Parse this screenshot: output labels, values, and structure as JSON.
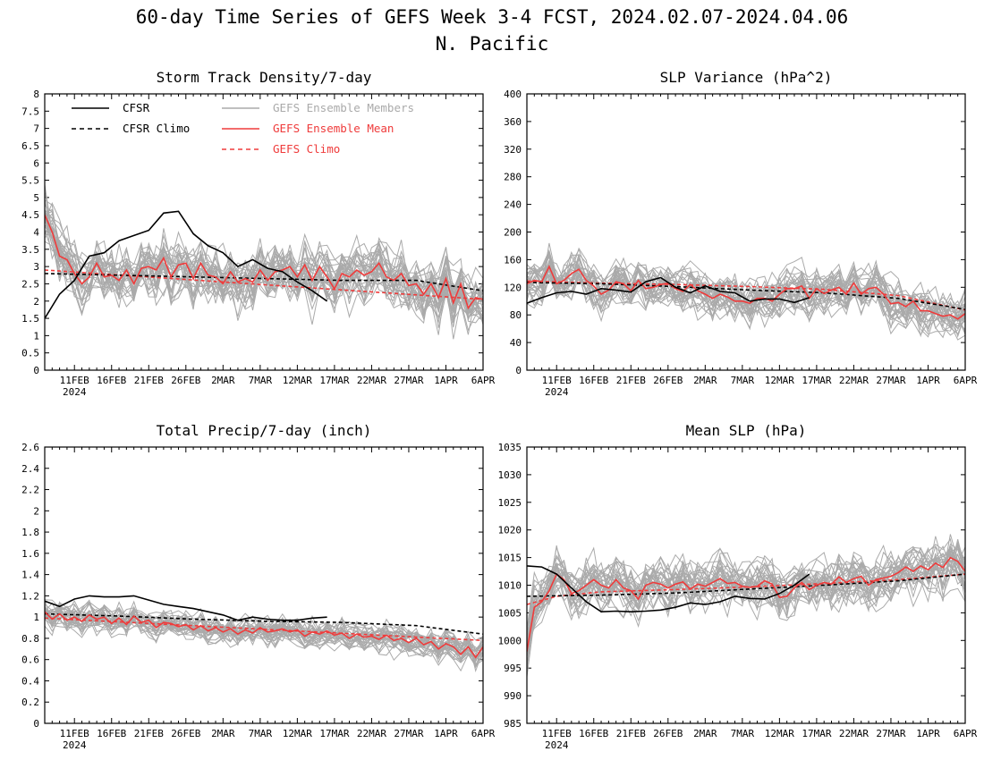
{
  "figure": {
    "title_line1": "60-day Time Series of GEFS Week 3-4 FCST, 2024.02.07-2024.04.06",
    "title_line2": "N. Pacific"
  },
  "legend": {
    "cfsr": "CFSR",
    "cfsr_climo": "CFSR Climo",
    "gefs_members": "GEFS Ensemble Members",
    "gefs_mean": "GEFS Ensemble Mean",
    "gefs_climo": "GEFS Climo"
  },
  "colors": {
    "cfsr": "#000000",
    "gefs_mean": "#ef3b3b",
    "gefs_climo": "#ef3b3b",
    "members": "#aaaaaa"
  },
  "chart_data": [
    {
      "id": "storm",
      "type": "line",
      "title": "Storm Track Density/7-day",
      "ylim": [
        0,
        8
      ],
      "yticks": [
        "0",
        "0.5",
        "1",
        "1.5",
        "2",
        "2.5",
        "3",
        "3.5",
        "4",
        "4.5",
        "5",
        "5.5",
        "6",
        "6.5",
        "7",
        "7.5",
        "8"
      ],
      "xlim": [
        "2024-02-07",
        "2024-04-06"
      ],
      "xticks": [
        "11FEB",
        "16FEB",
        "21FEB",
        "26FEB",
        "2MAR",
        "7MAR",
        "12MAR",
        "17MAR",
        "22MAR",
        "27MAR",
        "1APR",
        "6APR"
      ],
      "xyear": "2024",
      "members_spread": 0.85,
      "members_count": 30,
      "series": [
        {
          "name": "CFSR",
          "style": "solid",
          "color": "#000000",
          "x": [
            0,
            2,
            4,
            6,
            8,
            10,
            12,
            14,
            16,
            18,
            20,
            22,
            24,
            26,
            28,
            30,
            32,
            34,
            36,
            38
          ],
          "values": [
            1.5,
            2.2,
            2.6,
            3.3,
            3.4,
            3.75,
            3.9,
            4.05,
            4.55,
            4.6,
            3.95,
            3.6,
            3.4,
            3.0,
            3.2,
            2.95,
            2.85,
            2.55,
            2.3,
            2.0
          ]
        },
        {
          "name": "CFSR Climo",
          "style": "dashed",
          "color": "#000000",
          "x": [
            0,
            10,
            20,
            30,
            40,
            50,
            59
          ],
          "values": [
            2.8,
            2.75,
            2.7,
            2.65,
            2.6,
            2.6,
            2.3
          ]
        },
        {
          "name": "GEFS Ensemble Mean",
          "style": "solid",
          "color": "#ef3b3b",
          "x": [
            0,
            1,
            2,
            3,
            4,
            5,
            6,
            7,
            8,
            9,
            10,
            11,
            12,
            13,
            14,
            15,
            16,
            17,
            18,
            19,
            20,
            21,
            22,
            23,
            24,
            25,
            26,
            27,
            28,
            29,
            30,
            31,
            32,
            33,
            34,
            35,
            36,
            37,
            38,
            39,
            40,
            41,
            42,
            43,
            44,
            45,
            46,
            47,
            48,
            49,
            50,
            51,
            52,
            53,
            54,
            55,
            56,
            57,
            58,
            59
          ],
          "values": [
            4.5,
            4.0,
            3.3,
            3.2,
            2.8,
            2.5,
            2.7,
            3.1,
            2.7,
            2.75,
            2.6,
            2.9,
            2.5,
            2.95,
            3.0,
            2.9,
            3.25,
            2.7,
            3.05,
            3.1,
            2.65,
            3.1,
            2.75,
            2.7,
            2.5,
            2.85,
            2.55,
            2.65,
            2.55,
            2.9,
            2.6,
            2.85,
            2.9,
            3.0,
            2.7,
            3.05,
            2.6,
            3.0,
            2.7,
            2.35,
            2.8,
            2.7,
            2.9,
            2.75,
            2.85,
            3.1,
            2.7,
            2.6,
            2.8,
            2.45,
            2.5,
            2.2,
            2.5,
            2.1,
            2.65,
            1.95,
            2.5,
            1.8,
            2.1,
            2.05
          ]
        },
        {
          "name": "GEFS Climo",
          "style": "dashed",
          "color": "#ef3b3b",
          "x": [
            0,
            59
          ],
          "values": [
            2.9,
            2.05
          ]
        }
      ]
    },
    {
      "id": "slpvar",
      "type": "line",
      "title": "SLP Variance (hPa^2)",
      "ylim": [
        0,
        400
      ],
      "yticks": [
        "0",
        "40",
        "80",
        "120",
        "160",
        "200",
        "240",
        "280",
        "320",
        "360",
        "400"
      ],
      "xlim": [
        "2024-02-07",
        "2024-04-06"
      ],
      "xticks": [
        "11FEB",
        "16FEB",
        "21FEB",
        "26FEB",
        "2MAR",
        "7MAR",
        "12MAR",
        "17MAR",
        "22MAR",
        "27MAR",
        "1APR",
        "6APR"
      ],
      "xyear": "2024",
      "members_spread": 32,
      "members_count": 30,
      "series": [
        {
          "name": "CFSR",
          "style": "solid",
          "color": "#000000",
          "x": [
            0,
            2,
            4,
            6,
            8,
            10,
            12,
            14,
            16,
            18,
            20,
            22,
            24,
            26,
            28,
            30,
            32,
            34,
            36,
            38
          ],
          "values": [
            97,
            105,
            112,
            114,
            110,
            118,
            116,
            113,
            128,
            134,
            120,
            112,
            122,
            114,
            112,
            100,
            103,
            103,
            98,
            105
          ]
        },
        {
          "name": "CFSR Climo",
          "style": "dashed",
          "color": "#000000",
          "x": [
            0,
            10,
            20,
            30,
            40,
            50,
            59
          ],
          "values": [
            127,
            125,
            121,
            116,
            112,
            104,
            88
          ]
        },
        {
          "name": "GEFS Ensemble Mean",
          "style": "solid",
          "color": "#ef3b3b",
          "x": [
            0,
            1,
            2,
            3,
            4,
            5,
            6,
            7,
            8,
            9,
            10,
            11,
            12,
            13,
            14,
            15,
            16,
            17,
            18,
            19,
            20,
            21,
            22,
            23,
            24,
            25,
            26,
            27,
            28,
            29,
            30,
            31,
            32,
            33,
            34,
            35,
            36,
            37,
            38,
            39,
            40,
            41,
            42,
            43,
            44,
            45,
            46,
            47,
            48,
            49,
            50,
            51,
            52,
            53,
            54,
            55,
            56,
            57,
            58,
            59
          ],
          "values": [
            125,
            130,
            128,
            150,
            125,
            130,
            140,
            146,
            130,
            122,
            110,
            116,
            128,
            125,
            115,
            130,
            118,
            120,
            124,
            126,
            118,
            114,
            124,
            115,
            110,
            104,
            110,
            106,
            100,
            100,
            97,
            104,
            104,
            100,
            110,
            118,
            118,
            122,
            104,
            118,
            111,
            116,
            120,
            110,
            126,
            110,
            118,
            120,
            110,
            96,
            98,
            92,
            100,
            86,
            86,
            82,
            78,
            80,
            74,
            82
          ]
        },
        {
          "name": "GEFS Climo",
          "style": "dashed",
          "color": "#ef3b3b",
          "x": [
            0,
            10,
            20,
            30,
            40,
            50,
            59
          ],
          "values": [
            129,
            126,
            124,
            121,
            117,
            108,
            87
          ]
        }
      ]
    },
    {
      "id": "precip",
      "type": "line",
      "title": "Total Precip/7-day (inch)",
      "ylim": [
        0,
        2.6
      ],
      "yticks": [
        "0",
        "0.2",
        "0.4",
        "0.6",
        "0.8",
        "1",
        "1.2",
        "1.4",
        "1.6",
        "1.8",
        "2",
        "2.2",
        "2.4",
        "2.6"
      ],
      "xlim": [
        "2024-02-07",
        "2024-04-06"
      ],
      "xticks": [
        "11FEB",
        "16FEB",
        "21FEB",
        "26FEB",
        "2MAR",
        "7MAR",
        "12MAR",
        "17MAR",
        "22MAR",
        "27MAR",
        "1APR",
        "6APR"
      ],
      "xyear": "2024",
      "members_spread": 0.13,
      "members_count": 30,
      "series": [
        {
          "name": "CFSR",
          "style": "solid",
          "color": "#000000",
          "x": [
            0,
            2,
            4,
            6,
            8,
            10,
            12,
            14,
            16,
            18,
            20,
            22,
            24,
            26,
            28,
            30,
            32,
            34,
            36,
            38
          ],
          "values": [
            1.15,
            1.1,
            1.17,
            1.2,
            1.19,
            1.19,
            1.2,
            1.16,
            1.12,
            1.1,
            1.08,
            1.05,
            1.02,
            0.97,
            1.0,
            0.98,
            0.97,
            0.97,
            0.99,
            1.0
          ]
        },
        {
          "name": "CFSR Climo",
          "style": "dashed",
          "color": "#000000",
          "x": [
            0,
            10,
            20,
            30,
            40,
            50,
            59
          ],
          "values": [
            1.03,
            1.01,
            0.98,
            0.96,
            0.95,
            0.92,
            0.84
          ]
        },
        {
          "name": "GEFS Ensemble Mean",
          "style": "solid",
          "color": "#ef3b3b",
          "x": [
            0,
            1,
            2,
            3,
            4,
            5,
            6,
            7,
            8,
            9,
            10,
            11,
            12,
            13,
            14,
            15,
            16,
            17,
            18,
            19,
            20,
            21,
            22,
            23,
            24,
            25,
            26,
            27,
            28,
            29,
            30,
            31,
            32,
            33,
            34,
            35,
            36,
            37,
            38,
            39,
            40,
            41,
            42,
            43,
            44,
            45,
            46,
            47,
            48,
            49,
            50,
            51,
            52,
            53,
            54,
            55,
            56,
            57,
            58,
            59
          ],
          "values": [
            1.05,
            0.98,
            1.03,
            0.97,
            1.0,
            0.96,
            1.02,
            0.98,
            1.0,
            0.94,
            0.99,
            0.93,
            1.01,
            0.95,
            0.97,
            0.9,
            0.95,
            0.94,
            0.91,
            0.93,
            0.88,
            0.92,
            0.87,
            0.9,
            0.86,
            0.89,
            0.84,
            0.88,
            0.85,
            0.9,
            0.86,
            0.87,
            0.89,
            0.86,
            0.88,
            0.82,
            0.86,
            0.84,
            0.87,
            0.83,
            0.85,
            0.8,
            0.84,
            0.81,
            0.82,
            0.79,
            0.83,
            0.78,
            0.8,
            0.76,
            0.8,
            0.74,
            0.77,
            0.7,
            0.75,
            0.72,
            0.65,
            0.72,
            0.62,
            0.72
          ]
        },
        {
          "name": "GEFS Climo",
          "style": "dashed",
          "color": "#ef3b3b",
          "x": [
            0,
            59
          ],
          "values": [
            0.99,
            0.78
          ]
        }
      ]
    },
    {
      "id": "mslp",
      "type": "line",
      "title": "Mean SLP (hPa)",
      "ylim": [
        985,
        1035
      ],
      "yticks": [
        "985",
        "990",
        "995",
        "1000",
        "1005",
        "1010",
        "1015",
        "1020",
        "1025",
        "1030",
        "1035"
      ],
      "xlim": [
        "2024-02-07",
        "2024-04-06"
      ],
      "xticks": [
        "11FEB",
        "16FEB",
        "21FEB",
        "26FEB",
        "2MAR",
        "7MAR",
        "12MAR",
        "17MAR",
        "22MAR",
        "27MAR",
        "1APR",
        "6APR"
      ],
      "xyear": "2024",
      "members_spread": 4.5,
      "members_count": 30,
      "series": [
        {
          "name": "CFSR",
          "style": "solid",
          "color": "#000000",
          "x": [
            0,
            2,
            4,
            6,
            8,
            10,
            12,
            14,
            16,
            18,
            20,
            22,
            24,
            26,
            28,
            30,
            32,
            34,
            36,
            38
          ],
          "values": [
            1013.5,
            1013.3,
            1012,
            1009.5,
            1007,
            1005.2,
            1005.3,
            1005.2,
            1005.3,
            1005.5,
            1006,
            1006.8,
            1006.5,
            1007,
            1008,
            1007.6,
            1007.5,
            1008.5,
            1010,
            1012
          ]
        },
        {
          "name": "CFSR Climo",
          "style": "dashed",
          "color": "#000000",
          "x": [
            0,
            10,
            20,
            30,
            40,
            50,
            59
          ],
          "values": [
            1008,
            1008.2,
            1008.6,
            1009.3,
            1010,
            1010.8,
            1012
          ]
        },
        {
          "name": "GEFS Ensemble Mean",
          "style": "solid",
          "color": "#ef3b3b",
          "x": [
            0,
            1,
            2,
            3,
            4,
            5,
            6,
            7,
            8,
            9,
            10,
            11,
            12,
            13,
            14,
            15,
            16,
            17,
            18,
            19,
            20,
            21,
            22,
            23,
            24,
            25,
            26,
            27,
            28,
            29,
            30,
            31,
            32,
            33,
            34,
            35,
            36,
            37,
            38,
            39,
            40,
            41,
            42,
            43,
            44,
            45,
            46,
            47,
            48,
            49,
            50,
            51,
            52,
            53,
            54,
            55,
            56,
            57,
            58,
            59
          ],
          "values": [
            998,
            1006,
            1007,
            1009,
            1012,
            1011,
            1008.5,
            1009,
            1010,
            1011,
            1010,
            1009.5,
            1011,
            1009.5,
            1009,
            1007.5,
            1010,
            1010.5,
            1010.2,
            1009.5,
            1010.2,
            1010.6,
            1009.3,
            1010.2,
            1009.8,
            1010.5,
            1011.2,
            1010.3,
            1010.5,
            1009.8,
            1009.6,
            1009.8,
            1010.8,
            1010.2,
            1007.8,
            1008,
            1009.5,
            1010.5,
            1009.2,
            1010,
            1010.5,
            1010.2,
            1011.5,
            1010.5,
            1011.2,
            1011.6,
            1010,
            1011,
            1011.3,
            1011.6,
            1012.3,
            1013.3,
            1012.5,
            1013.5,
            1012.8,
            1014,
            1013.2,
            1015,
            1014.3,
            1012.5
          ]
        },
        {
          "name": "GEFS Climo",
          "style": "dashed",
          "color": "#ef3b3b",
          "x": [
            0,
            4,
            10,
            20,
            30,
            40,
            50,
            59
          ],
          "values": [
            1006.5,
            1008,
            1008.8,
            1009.2,
            1009.7,
            1010.3,
            1011,
            1012
          ]
        }
      ]
    }
  ]
}
